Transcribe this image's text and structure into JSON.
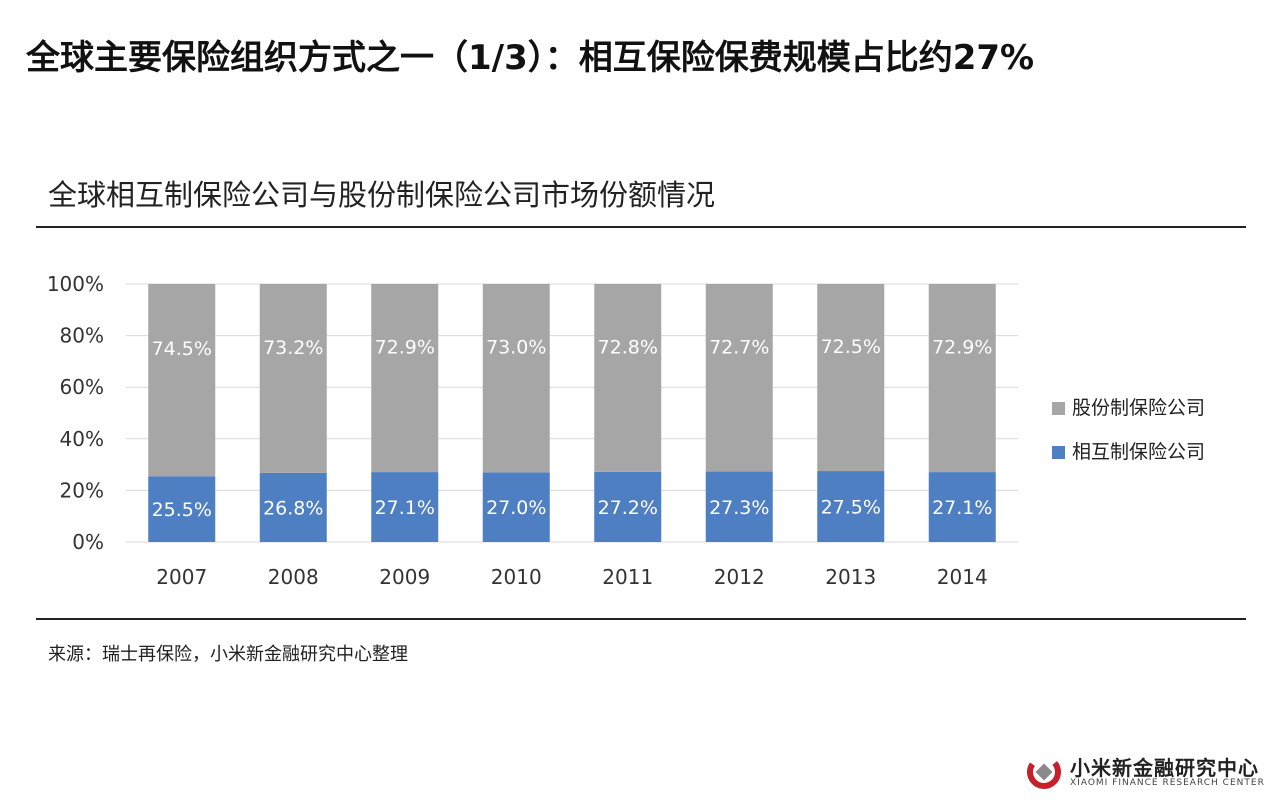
{
  "page": {
    "title": "全球主要保险组织方式之一（1/3）：相互保险保费规模占比约27%",
    "source": "来源：瑞士再保险，小米新金融研究中心整理"
  },
  "brand": {
    "name": "小米新金融研究中心",
    "subtitle": "XIAOMI FINANCE RESEARCH CENTER",
    "colors": {
      "red": "#c8202a",
      "grey": "#8a8a8a"
    }
  },
  "chart_data": {
    "type": "bar",
    "stacked": true,
    "title": "全球相互制保险公司与股份制保险公司市场份额情况",
    "categories": [
      "2007",
      "2008",
      "2009",
      "2010",
      "2011",
      "2012",
      "2013",
      "2014"
    ],
    "series": [
      {
        "name": "相互制保险公司",
        "color": "#4f7fc3",
        "values": [
          25.5,
          26.8,
          27.1,
          27.0,
          27.2,
          27.3,
          27.5,
          27.1
        ],
        "labels": [
          "25.5%",
          "26.8%",
          "27.1%",
          "27.0%",
          "27.2%",
          "27.3%",
          "27.5%",
          "27.1%"
        ]
      },
      {
        "name": "股份制保险公司",
        "color": "#a6a6a6",
        "values": [
          74.5,
          73.2,
          72.9,
          73.0,
          72.8,
          72.7,
          72.5,
          72.9
        ],
        "labels": [
          "74.5%",
          "73.2%",
          "72.9%",
          "73.0%",
          "72.8%",
          "72.7%",
          "72.5%",
          "72.9%"
        ]
      }
    ],
    "ylim": [
      0,
      100
    ],
    "yticks": [
      "0%",
      "20%",
      "40%",
      "60%",
      "80%",
      "100%"
    ],
    "grid": true,
    "legend": "right"
  }
}
